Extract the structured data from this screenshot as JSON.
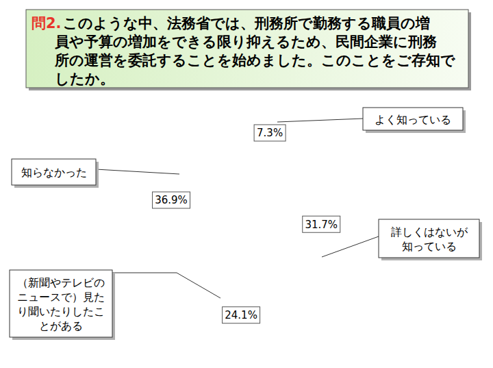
{
  "chart_data": {
    "type": "pie",
    "question_label": "問2.",
    "title": "このような中、法務省では、刑務所で勤務する職員の増員や予算の増加をできる限り抑えるため、民間企業に刑務所の運営を委託することを始めました。このことをご存知でしたか。",
    "categories": [
      "よく知っている",
      "詳しくはないが知っている",
      "（新聞やテレビのニュースで）見たり聞いたりしたことがある",
      "知らなかった"
    ],
    "values": [
      7.3,
      31.7,
      24.1,
      36.9
    ],
    "value_labels": [
      "7.3%",
      "31.7%",
      "24.1%",
      "36.9%"
    ],
    "colors": [
      "#99ccff",
      "#99ccff",
      "#cfe3e8",
      "#ffff99"
    ],
    "data_labels": true
  }
}
